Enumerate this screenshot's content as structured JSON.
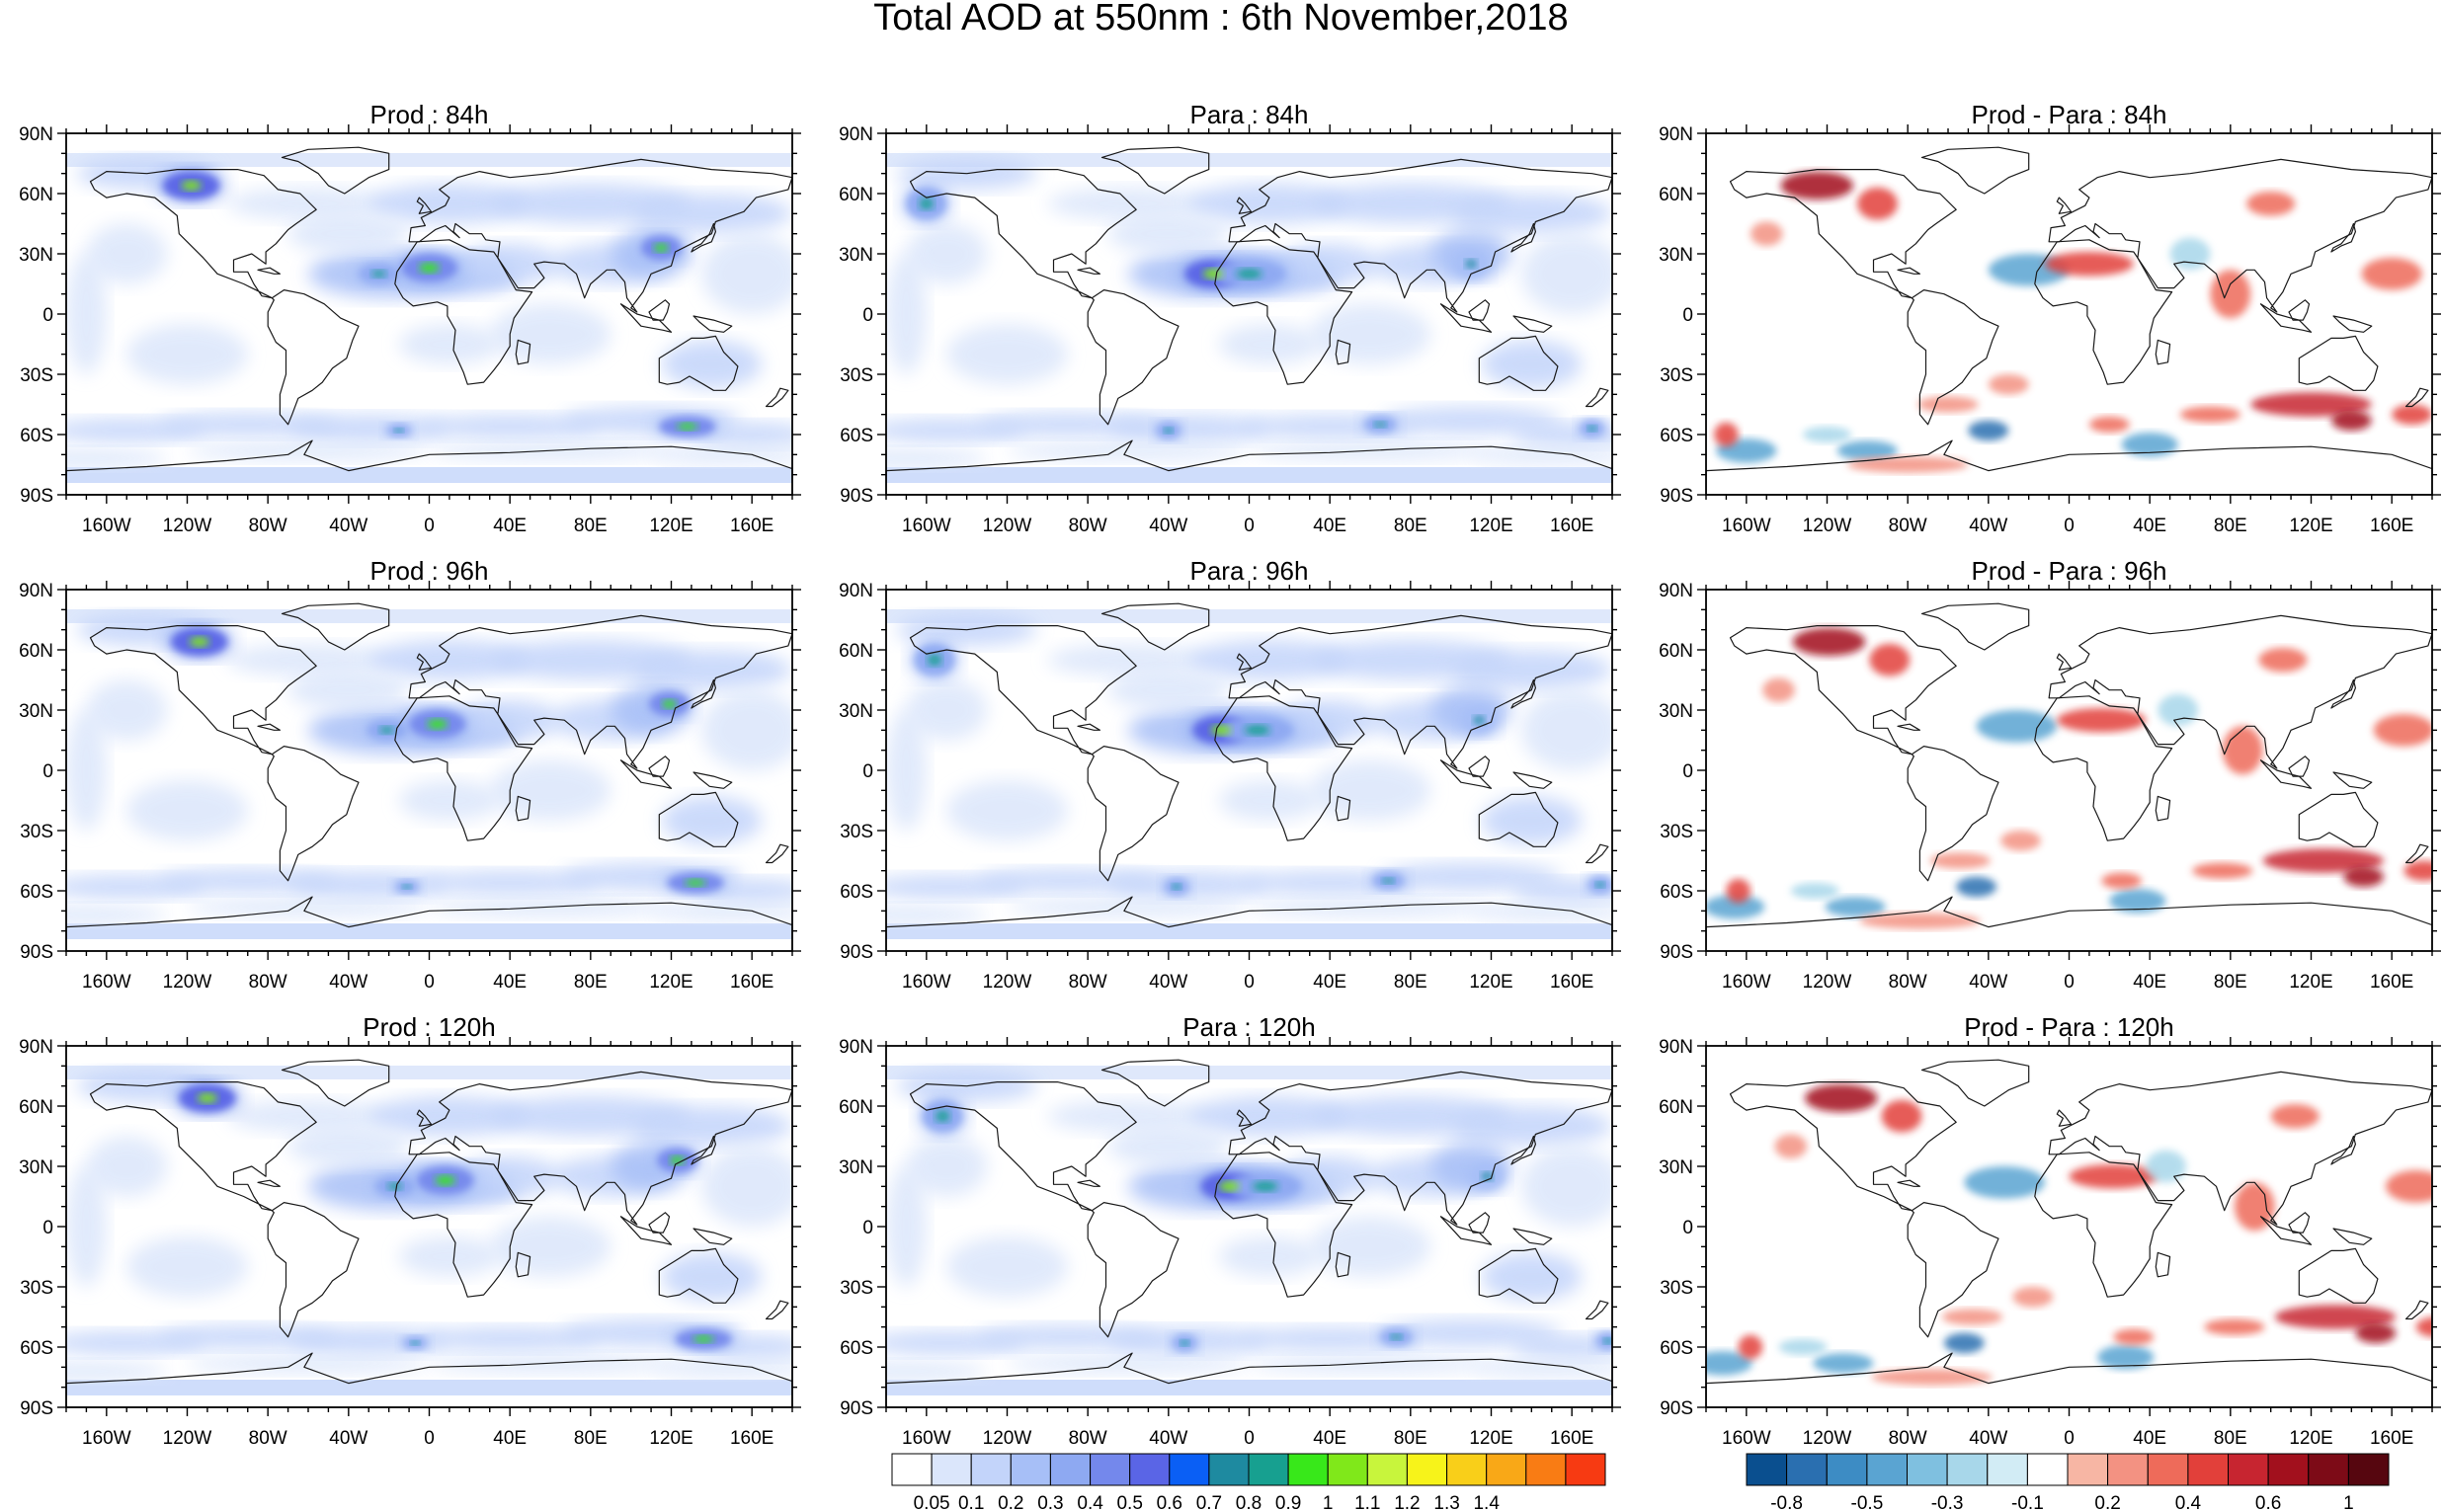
{
  "figure": {
    "title": "Total AOD at 550nm : 6th November,2018",
    "panels": [
      {
        "title": "Prod : 84h",
        "kind": "aod",
        "row": 0,
        "col": 0
      },
      {
        "title": "Para : 84h",
        "kind": "aod",
        "row": 0,
        "col": 1
      },
      {
        "title": "Prod - Para : 84h",
        "kind": "diff",
        "row": 0,
        "col": 2
      },
      {
        "title": "Prod : 96h",
        "kind": "aod",
        "row": 1,
        "col": 0
      },
      {
        "title": "Para : 96h",
        "kind": "aod",
        "row": 1,
        "col": 1
      },
      {
        "title": "Prod - Para : 96h",
        "kind": "diff",
        "row": 1,
        "col": 2
      },
      {
        "title": "Prod : 120h",
        "kind": "aod",
        "row": 2,
        "col": 0
      },
      {
        "title": "Para : 120h",
        "kind": "aod",
        "row": 2,
        "col": 1
      },
      {
        "title": "Prod - Para : 120h",
        "kind": "diff",
        "row": 2,
        "col": 2
      }
    ],
    "lat_labels": [
      "90N",
      "60N",
      "30N",
      "0",
      "30S",
      "60S",
      "90S"
    ],
    "lon_labels": [
      "160W",
      "120W",
      "80W",
      "40W",
      "0",
      "40E",
      "80E",
      "120E",
      "160E"
    ],
    "aod_colorbar": {
      "colors": [
        "#ffffff",
        "#dbe6fb",
        "#c3d4fa",
        "#a7bff7",
        "#8ea9f2",
        "#7488ec",
        "#5a65e6",
        "#0a5ff5",
        "#1e8aa0",
        "#17a090",
        "#38e81a",
        "#80e81a",
        "#c8f53c",
        "#f7f31a",
        "#f9cf19",
        "#f9a817",
        "#f97c14",
        "#f73a12"
      ],
      "labels": [
        "0.05",
        "0.1",
        "0.2",
        "0.3",
        "0.4",
        "0.5",
        "0.6",
        "0.7",
        "0.8",
        "0.9",
        "1",
        "1.1",
        "1.2",
        "1.3",
        "1.4"
      ]
    },
    "diff_colorbar": {
      "colors": [
        "#0a4f8f",
        "#2a6fb0",
        "#3d8cc4",
        "#5aa4d2",
        "#7fc0e0",
        "#a8d7ea",
        "#d2ecf5",
        "#ffffff",
        "#f7b6a4",
        "#f39282",
        "#ee6b5a",
        "#e2403a",
        "#c72530",
        "#a2101d",
        "#7d0b17",
        "#56060f"
      ],
      "labels": [
        "-0.8",
        "-0.5",
        "-0.3",
        "-0.1",
        "0.2",
        "0.4",
        "0.6",
        "1"
      ]
    }
  }
}
